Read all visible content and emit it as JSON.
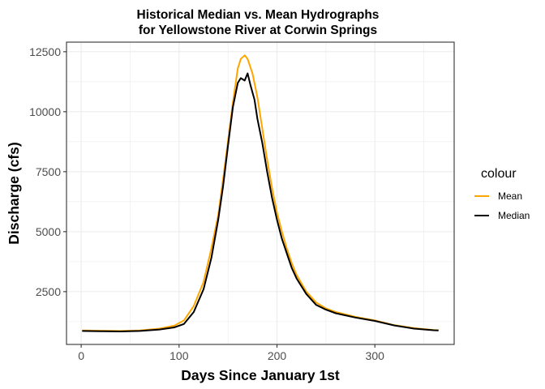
{
  "chart_data": {
    "type": "line",
    "title": "Historical Median vs. Mean Hydrographs",
    "subtitle": "for Yellowstone River at Corwin Springs",
    "xlabel": "Days Since January 1st",
    "ylabel": "Discharge (cfs)",
    "xlim": [
      -15,
      381
    ],
    "ylim": [
      300,
      12900
    ],
    "x_ticks": [
      0,
      100,
      200,
      300
    ],
    "y_ticks": [
      2500,
      5000,
      7500,
      10000,
      12500
    ],
    "x_tick_labels": [
      "0",
      "100",
      "200",
      "300"
    ],
    "y_tick_labels": [
      "2500",
      "5000",
      "7500",
      "10000",
      "12500"
    ],
    "grid": true,
    "legend_position": "right",
    "legend_title": "colour",
    "series": [
      {
        "name": "Mean",
        "color": "#FFA500",
        "points": [
          [
            1,
            880
          ],
          [
            20,
            870
          ],
          [
            40,
            860
          ],
          [
            60,
            880
          ],
          [
            80,
            960
          ],
          [
            95,
            1080
          ],
          [
            105,
            1300
          ],
          [
            115,
            1900
          ],
          [
            125,
            2900
          ],
          [
            133,
            4300
          ],
          [
            140,
            5700
          ],
          [
            145,
            7200
          ],
          [
            150,
            8800
          ],
          [
            155,
            10400
          ],
          [
            160,
            11800
          ],
          [
            163,
            12200
          ],
          [
            167,
            12350
          ],
          [
            170,
            12200
          ],
          [
            175,
            11600
          ],
          [
            180,
            10600
          ],
          [
            185,
            9300
          ],
          [
            190,
            8000
          ],
          [
            195,
            6800
          ],
          [
            200,
            5800
          ],
          [
            205,
            5000
          ],
          [
            210,
            4300
          ],
          [
            215,
            3700
          ],
          [
            220,
            3200
          ],
          [
            230,
            2500
          ],
          [
            240,
            2050
          ],
          [
            250,
            1800
          ],
          [
            260,
            1650
          ],
          [
            280,
            1450
          ],
          [
            300,
            1300
          ],
          [
            320,
            1100
          ],
          [
            340,
            980
          ],
          [
            360,
            900
          ],
          [
            365,
            890
          ]
        ]
      },
      {
        "name": "Median",
        "color": "#000000",
        "points": [
          [
            1,
            860
          ],
          [
            20,
            850
          ],
          [
            40,
            840
          ],
          [
            60,
            860
          ],
          [
            80,
            920
          ],
          [
            95,
            1010
          ],
          [
            105,
            1150
          ],
          [
            115,
            1650
          ],
          [
            125,
            2600
          ],
          [
            133,
            3900
          ],
          [
            140,
            5500
          ],
          [
            145,
            6900
          ],
          [
            150,
            8600
          ],
          [
            155,
            10200
          ],
          [
            160,
            11200
          ],
          [
            163,
            11400
          ],
          [
            167,
            11300
          ],
          [
            170,
            11600
          ],
          [
            173,
            11100
          ],
          [
            177,
            10500
          ],
          [
            180,
            9700
          ],
          [
            185,
            8700
          ],
          [
            190,
            7500
          ],
          [
            195,
            6400
          ],
          [
            200,
            5500
          ],
          [
            205,
            4700
          ],
          [
            210,
            4100
          ],
          [
            215,
            3500
          ],
          [
            220,
            3050
          ],
          [
            230,
            2400
          ],
          [
            240,
            1950
          ],
          [
            250,
            1750
          ],
          [
            260,
            1600
          ],
          [
            280,
            1420
          ],
          [
            300,
            1280
          ],
          [
            320,
            1090
          ],
          [
            340,
            960
          ],
          [
            360,
            890
          ],
          [
            365,
            880
          ]
        ]
      }
    ]
  }
}
